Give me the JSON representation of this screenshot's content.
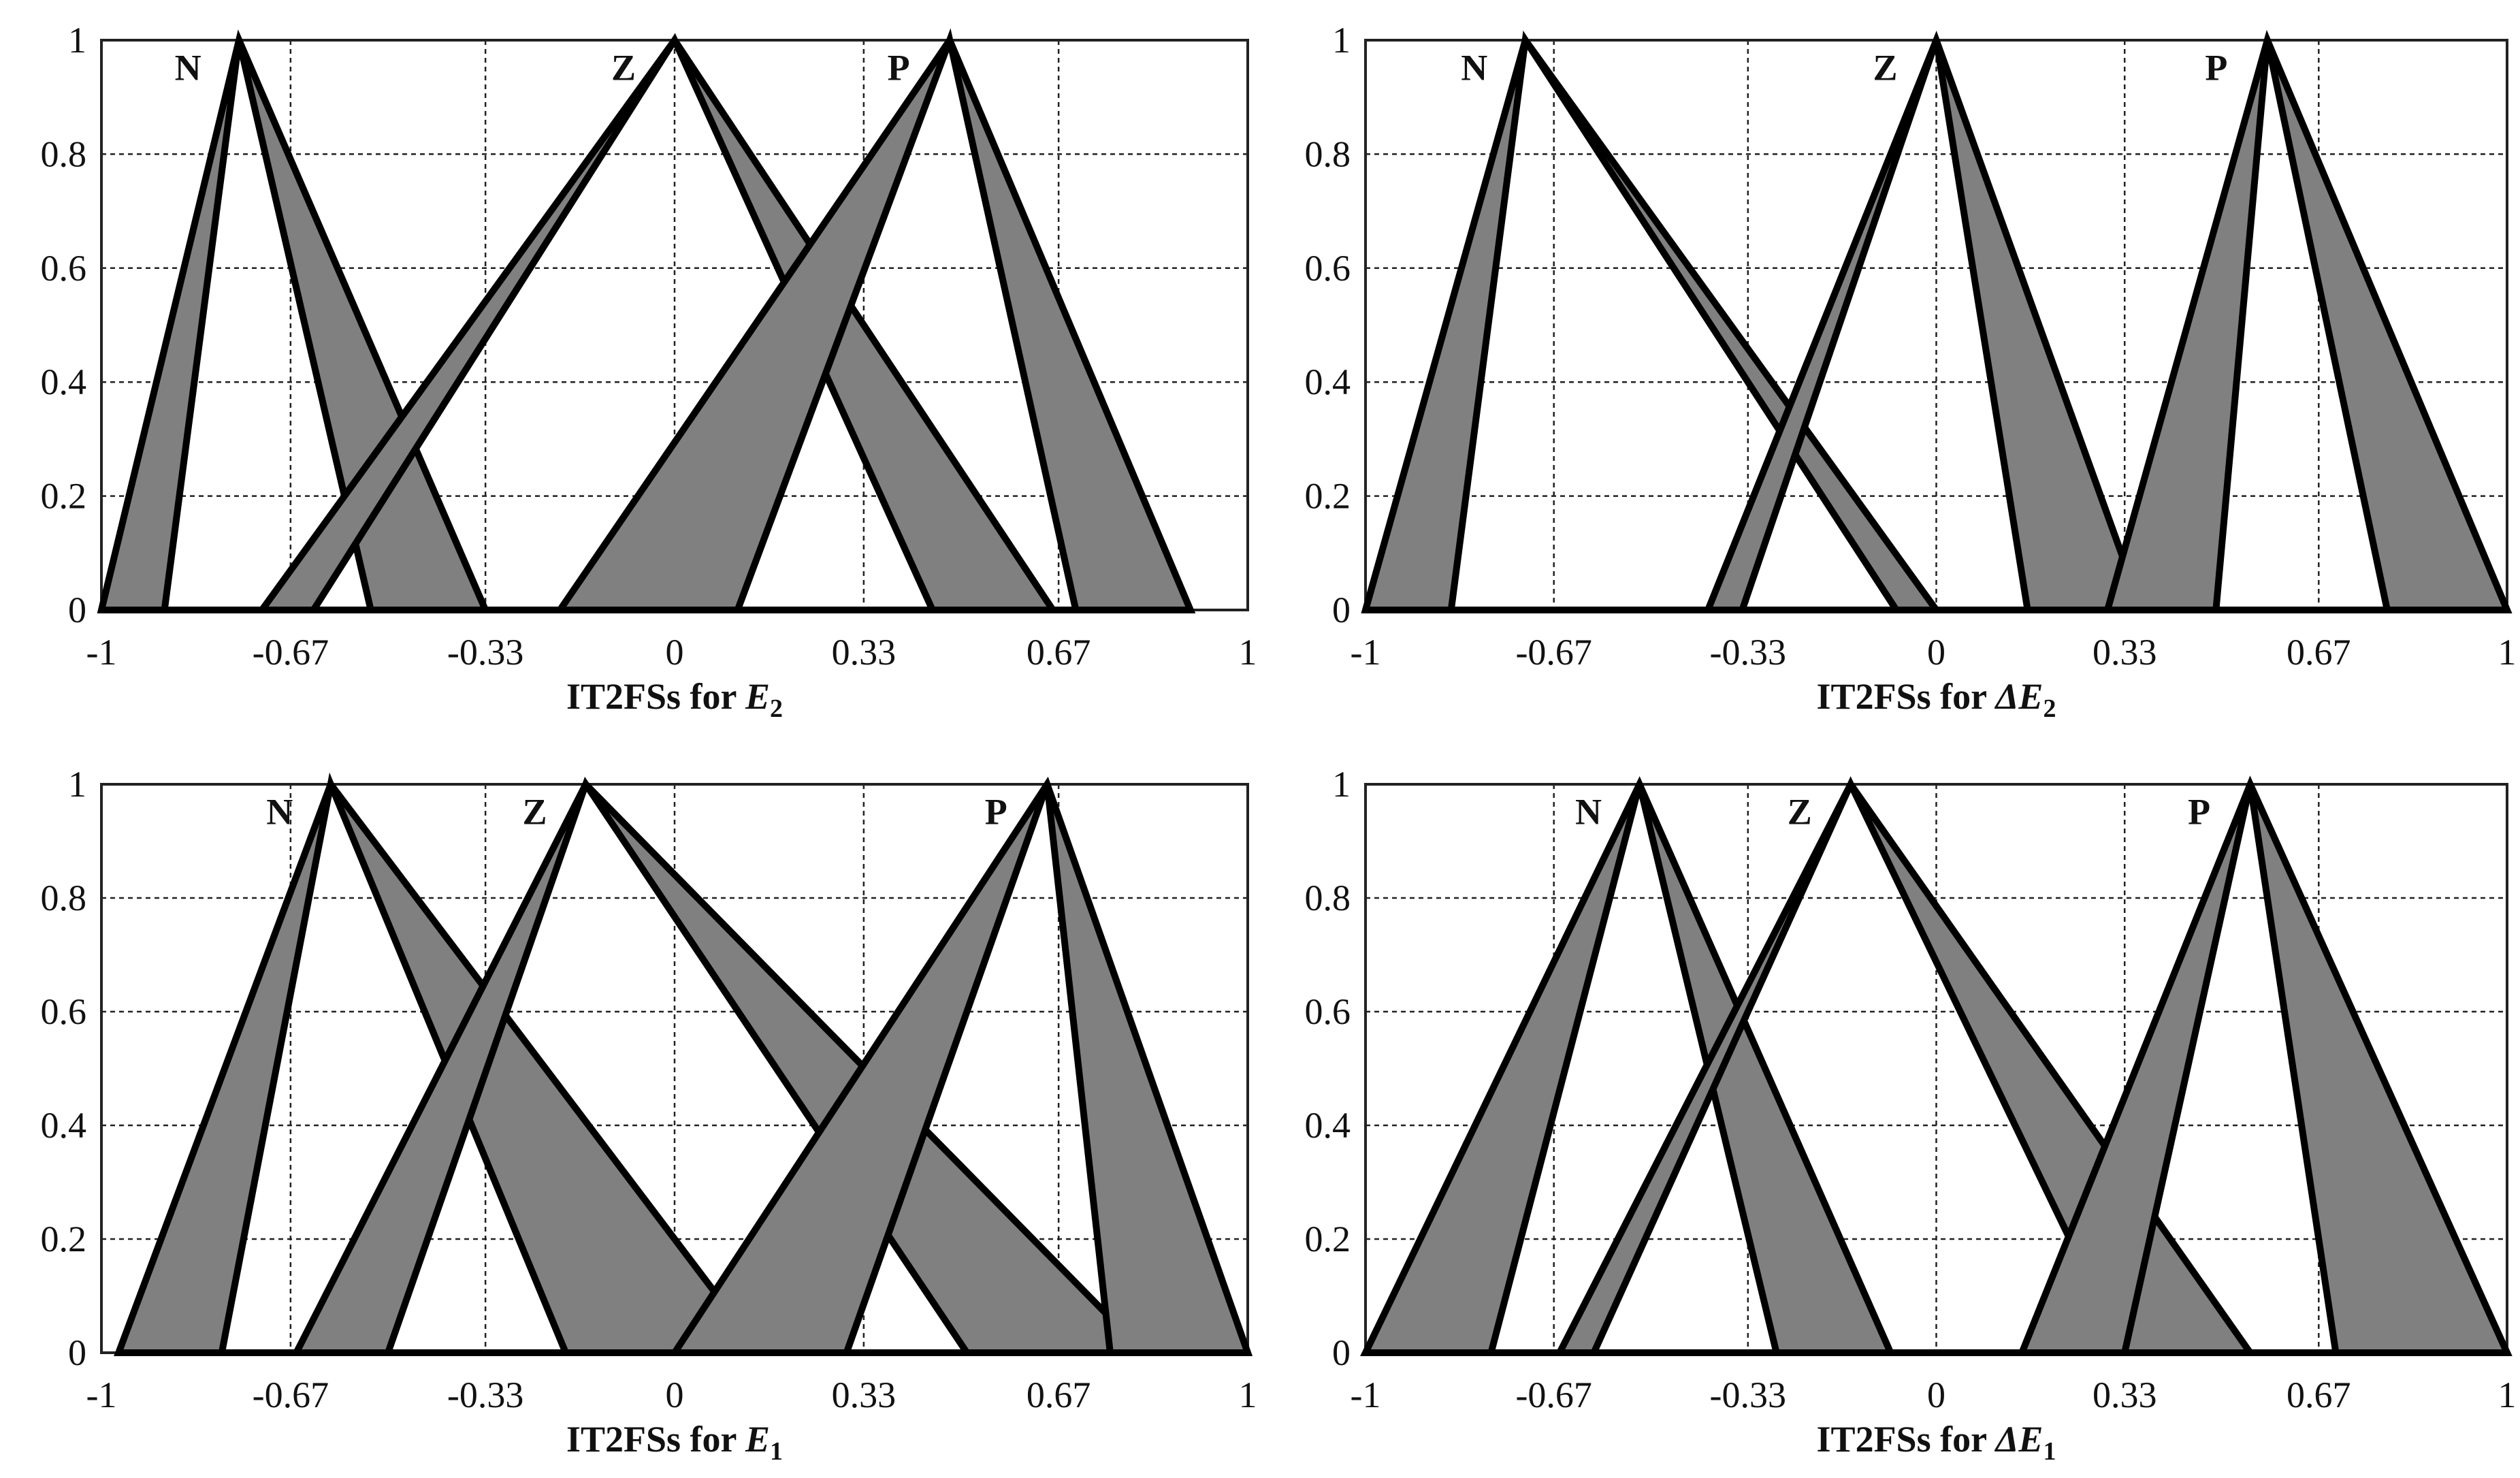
{
  "chart_data": [
    {
      "type": "area",
      "title_prefix": "IT2FSs for ",
      "title_var": "E",
      "title_sub": "2",
      "xlim": [
        -1,
        1
      ],
      "ylim": [
        0,
        1
      ],
      "xticks": [
        -1,
        -0.67,
        -0.33,
        0,
        0.33,
        0.67,
        1
      ],
      "xtick_labels": [
        "-1",
        "-0.67",
        "-0.33",
        "0",
        "0.33",
        "0.67",
        "1"
      ],
      "yticks": [
        0,
        0.2,
        0.4,
        0.6,
        0.8,
        1
      ],
      "ytick_labels": [
        "0",
        "0.2",
        "0.4",
        "0.6",
        "0.8",
        "1"
      ],
      "grid": true,
      "sets": [
        {
          "label": "N",
          "peak": -0.76,
          "umf_feet": [
            -1.0,
            -0.33
          ],
          "lmf_feet": [
            -0.89,
            -0.53
          ]
        },
        {
          "label": "Z",
          "peak": 0.0,
          "umf_feet": [
            -0.72,
            0.66
          ],
          "lmf_feet": [
            -0.63,
            0.45
          ]
        },
        {
          "label": "P",
          "peak": 0.48,
          "umf_feet": [
            -0.2,
            0.9
          ],
          "lmf_feet": [
            0.11,
            0.7
          ]
        }
      ]
    },
    {
      "type": "area",
      "title_prefix": "IT2FSs for ",
      "title_var": "ΔE",
      "title_sub": "2",
      "xlim": [
        -1,
        1
      ],
      "ylim": [
        0,
        1
      ],
      "xticks": [
        -1,
        -0.67,
        -0.33,
        0,
        0.33,
        0.67,
        1
      ],
      "xtick_labels": [
        "-1",
        "-0.67",
        "-0.33",
        "0",
        "0.33",
        "0.67",
        "1"
      ],
      "yticks": [
        0,
        0.2,
        0.4,
        0.6,
        0.8,
        1
      ],
      "ytick_labels": [
        "0",
        "0.2",
        "0.4",
        "0.6",
        "0.8",
        "1"
      ],
      "grid": true,
      "sets": [
        {
          "label": "N",
          "peak": -0.72,
          "umf_feet": [
            -1.0,
            0.0
          ],
          "lmf_feet": [
            -0.85,
            -0.07
          ]
        },
        {
          "label": "Z",
          "peak": 0.0,
          "umf_feet": [
            -0.4,
            0.36
          ],
          "lmf_feet": [
            -0.34,
            0.16
          ]
        },
        {
          "label": "P",
          "peak": 0.58,
          "umf_feet": [
            0.3,
            1.0
          ],
          "lmf_feet": [
            0.49,
            0.79
          ]
        }
      ]
    },
    {
      "type": "area",
      "title_prefix": "IT2FSs for ",
      "title_var": "E",
      "title_sub": "1",
      "xlim": [
        -1,
        1
      ],
      "ylim": [
        0,
        1
      ],
      "xticks": [
        -1,
        -0.67,
        -0.33,
        0,
        0.33,
        0.67,
        1
      ],
      "xtick_labels": [
        "-1",
        "-0.67",
        "-0.33",
        "0",
        "0.33",
        "0.67",
        "1"
      ],
      "yticks": [
        0,
        0.2,
        0.4,
        0.6,
        0.8,
        1
      ],
      "ytick_labels": [
        "0",
        "0.2",
        "0.4",
        "0.6",
        "0.8",
        "1"
      ],
      "grid": true,
      "sets": [
        {
          "label": "N",
          "peak": -0.6,
          "umf_feet": [
            -0.97,
            0.15
          ],
          "lmf_feet": [
            -0.79,
            -0.19
          ]
        },
        {
          "label": "Z",
          "peak": -0.155,
          "umf_feet": [
            -0.66,
            0.82
          ],
          "lmf_feet": [
            -0.5,
            0.51
          ]
        },
        {
          "label": "P",
          "peak": 0.65,
          "umf_feet": [
            0.0,
            1.0
          ],
          "lmf_feet": [
            0.3,
            0.76
          ]
        }
      ]
    },
    {
      "type": "area",
      "title_prefix": "IT2FSs for ",
      "title_var": "ΔE",
      "title_sub": "1",
      "xlim": [
        -1,
        1
      ],
      "ylim": [
        0,
        1
      ],
      "xticks": [
        -1,
        -0.67,
        -0.33,
        0,
        0.33,
        0.67,
        1
      ],
      "xtick_labels": [
        "-1",
        "-0.67",
        "-0.33",
        "0",
        "0.33",
        "0.67",
        "1"
      ],
      "yticks": [
        0,
        0.2,
        0.4,
        0.6,
        0.8,
        1
      ],
      "ytick_labels": [
        "0",
        "0.2",
        "0.4",
        "0.6",
        "0.8",
        "1"
      ],
      "grid": true,
      "sets": [
        {
          "label": "N",
          "peak": -0.52,
          "umf_feet": [
            -1.0,
            -0.08
          ],
          "lmf_feet": [
            -0.78,
            -0.28
          ]
        },
        {
          "label": "Z",
          "peak": -0.15,
          "umf_feet": [
            -0.66,
            0.55
          ],
          "lmf_feet": [
            -0.6,
            0.33
          ]
        },
        {
          "label": "P",
          "peak": 0.55,
          "umf_feet": [
            0.15,
            1.0
          ],
          "lmf_feet": [
            0.33,
            0.7
          ]
        }
      ]
    }
  ]
}
